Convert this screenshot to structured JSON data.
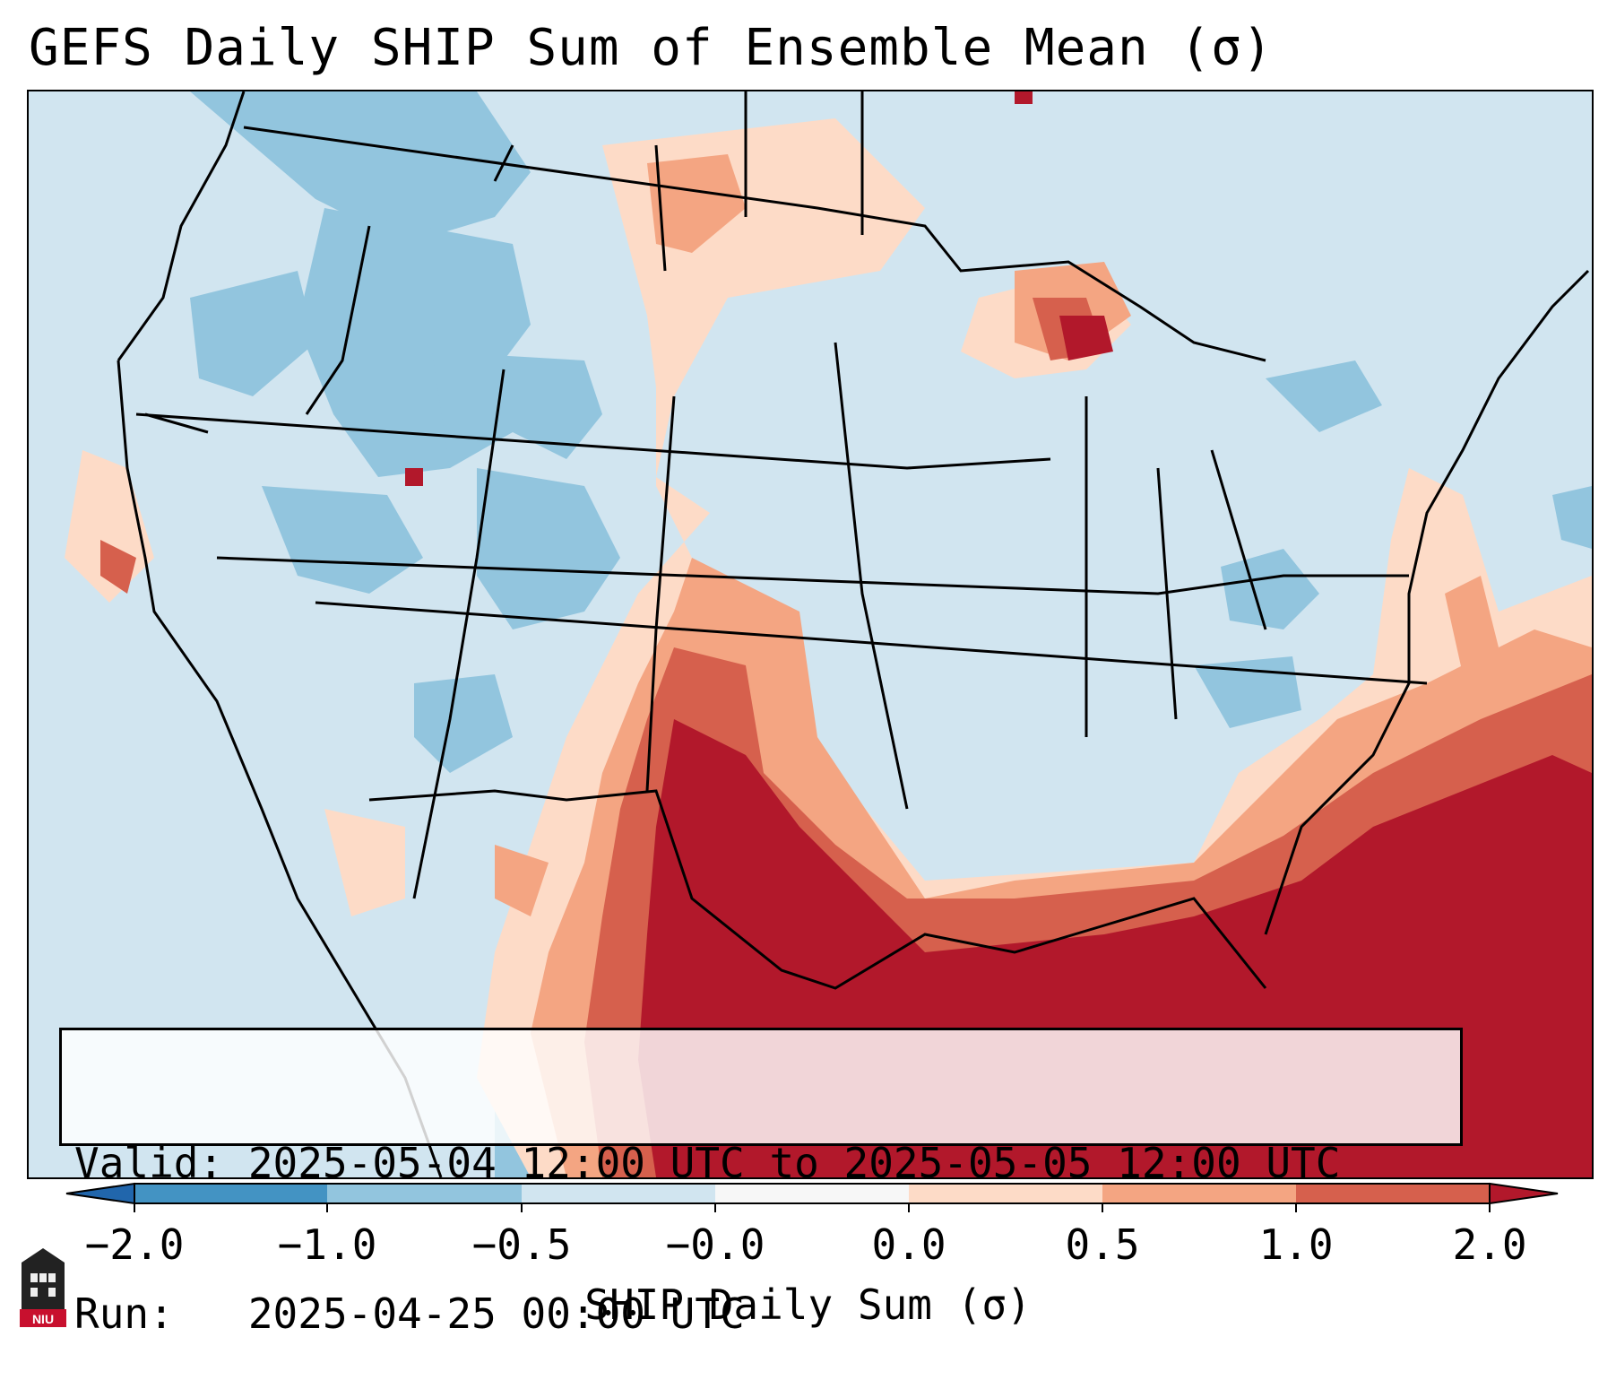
{
  "title": "GEFS Daily SHIP Sum of Ensemble Mean (σ)",
  "info": {
    "valid_line": "Valid: 2025-05-04 12:00 UTC to 2025-05-05 12:00 UTC",
    "run_line": "Run:   2025-04-25 00:00 UTC"
  },
  "colorbar": {
    "label": "SHIP Daily Sum (σ)",
    "ticks": [
      "−2.0",
      "−1.0",
      "−0.5",
      "−0.0",
      "0.0",
      "0.5",
      "1.0",
      "2.0"
    ],
    "bins": [
      {
        "range": "< -2.0",
        "color": "#2166ac"
      },
      {
        "range": "-2.0 to -1.0",
        "color": "#4393c3"
      },
      {
        "range": "-1.0 to -0.5",
        "color": "#92c5de"
      },
      {
        "range": "-0.5 to -0.0",
        "color": "#d1e5f0"
      },
      {
        "range": "-0.0 to 0.0",
        "color": "#f7f7f7"
      },
      {
        "range": "0.0 to 0.5",
        "color": "#fddbc7"
      },
      {
        "range": "0.5 to 1.0",
        "color": "#f4a582"
      },
      {
        "range": "1.0 to 2.0",
        "color": "#d6604d"
      },
      {
        "range": "> 2.0",
        "color": "#b2182b"
      }
    ]
  },
  "logo": {
    "text": "NIU",
    "icon": "niu-logo-icon"
  }
}
